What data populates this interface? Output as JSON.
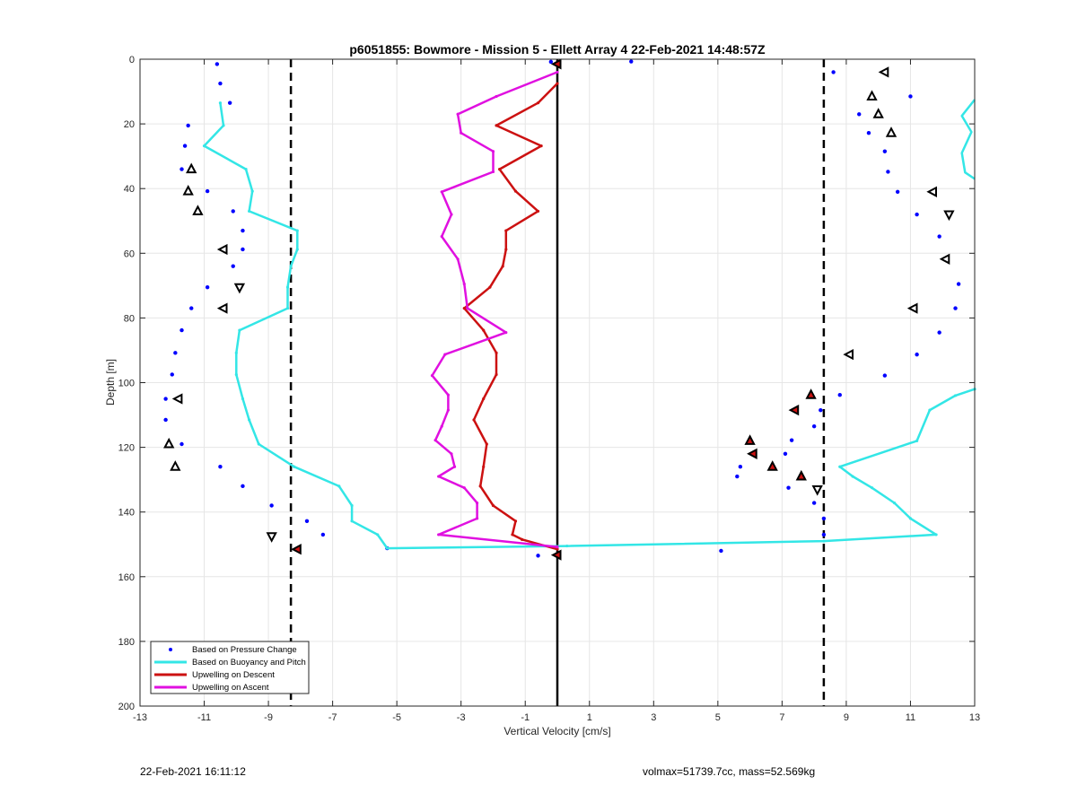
{
  "chart_data": {
    "type": "scatter",
    "title": "p6051855: Bowmore - Mission 5 - Ellett Array 4 22-Feb-2021 14:48:57Z",
    "xlabel": "Vertical Velocity [cm/s]",
    "ylabel": "Depth [m]",
    "xlim": [
      -13,
      13
    ],
    "ylim": [
      0,
      200
    ],
    "y_reversed": true,
    "grid": true,
    "legend_position": "bottom-left",
    "xticks": [
      "-13",
      "-11",
      "-9",
      "-7",
      "-5",
      "-3",
      "-1",
      "1",
      "3",
      "5",
      "7",
      "9",
      "11",
      "13"
    ],
    "yticks": [
      "0",
      "20",
      "40",
      "60",
      "80",
      "100",
      "120",
      "140",
      "160",
      "180",
      "200"
    ],
    "reference_lines": {
      "zero_line_x": 0,
      "dashed_lines_x": [
        -8.3,
        8.3
      ],
      "zero_color": "#000000",
      "dashed_color": "#000000"
    },
    "series": [
      {
        "name": "Based on Pressure Change",
        "style": "dots",
        "color": "#0000ff",
        "points": [
          [
            -10.6,
            1.5
          ],
          [
            -10.5,
            7.5
          ],
          [
            -10.2,
            13.5
          ],
          [
            -11.5,
            20.5
          ],
          [
            -11.6,
            26.8
          ],
          [
            -11.7,
            34
          ],
          [
            -10.9,
            40.8
          ],
          [
            -10.1,
            47
          ],
          [
            -9.8,
            53
          ],
          [
            -9.8,
            58.8
          ],
          [
            -10.1,
            64
          ],
          [
            -10.9,
            70.5
          ],
          [
            -11.4,
            77
          ],
          [
            -11.7,
            83.8
          ],
          [
            -11.9,
            90.8
          ],
          [
            -12.0,
            97.5
          ],
          [
            -12.2,
            105
          ],
          [
            -12.2,
            111.5
          ],
          [
            -11.7,
            119
          ],
          [
            -10.5,
            126
          ],
          [
            -9.8,
            132
          ],
          [
            -8.9,
            138
          ],
          [
            -7.8,
            142.8
          ],
          [
            -7.3,
            147
          ],
          [
            -5.3,
            151.2
          ],
          [
            -0.6,
            153.5
          ],
          [
            -0.2,
            0.8
          ],
          [
            2.3,
            0.7
          ],
          [
            5.1,
            152
          ],
          [
            8.6,
            4
          ],
          [
            11.0,
            11.5
          ],
          [
            9.4,
            17
          ],
          [
            9.7,
            22.8
          ],
          [
            10.2,
            28.5
          ],
          [
            10.3,
            34.8
          ],
          [
            10.6,
            41
          ],
          [
            11.2,
            48
          ],
          [
            11.9,
            54.8
          ],
          [
            12.1,
            61.8
          ],
          [
            12.5,
            69.5
          ],
          [
            12.4,
            77
          ],
          [
            11.9,
            84.5
          ],
          [
            11.2,
            91.3
          ],
          [
            10.2,
            97.8
          ],
          [
            8.8,
            103.8
          ],
          [
            8.2,
            108.5
          ],
          [
            8.0,
            113.5
          ],
          [
            7.3,
            117.8
          ],
          [
            7.1,
            122
          ],
          [
            5.7,
            126
          ],
          [
            5.6,
            129
          ],
          [
            7.2,
            132.5
          ],
          [
            8.0,
            137.2
          ],
          [
            8.3,
            142
          ],
          [
            8.3,
            147
          ]
        ]
      },
      {
        "name": "Based on Buoyancy and Pitch",
        "style": "line",
        "color": "#33e6e6",
        "points": [
          [
            -10.5,
            13.5
          ],
          [
            -10.4,
            20.5
          ],
          [
            -11.0,
            26.8
          ],
          [
            -9.7,
            34
          ],
          [
            -9.5,
            40.8
          ],
          [
            -9.6,
            47
          ],
          [
            -8.1,
            53
          ],
          [
            -8.1,
            58.8
          ],
          [
            -8.3,
            64
          ],
          [
            -8.4,
            70.5
          ],
          [
            -8.4,
            77
          ],
          [
            -9.9,
            83.8
          ],
          [
            -10.0,
            90.8
          ],
          [
            -10.0,
            97.5
          ],
          [
            -9.8,
            105
          ],
          [
            -9.6,
            111.5
          ],
          [
            -9.3,
            119
          ],
          [
            -8.2,
            126
          ],
          [
            -6.8,
            132
          ],
          [
            -6.4,
            138
          ],
          [
            -6.4,
            142.8
          ],
          [
            -5.6,
            147
          ],
          [
            -5.3,
            151.2
          ],
          [
            0.3,
            150.5
          ],
          [
            8.3,
            149
          ],
          [
            11.8,
            147
          ],
          [
            11.0,
            142
          ],
          [
            10.5,
            137.2
          ],
          [
            9.8,
            132.5
          ],
          [
            9.2,
            129
          ],
          [
            8.8,
            126
          ],
          [
            11.2,
            118
          ],
          [
            11.6,
            108.5
          ],
          [
            12.4,
            104
          ],
          [
            13.0,
            102
          ]
        ],
        "extra_segment": [
          [
            13.0,
            12.5
          ],
          [
            12.6,
            17.5
          ],
          [
            12.9,
            22.5
          ],
          [
            12.6,
            29
          ],
          [
            12.7,
            35
          ],
          [
            13.0,
            37
          ]
        ]
      },
      {
        "name": "Upwelling on Descent",
        "style": "line",
        "color": "#cc1111",
        "points": [
          [
            0.0,
            7.5
          ],
          [
            -0.6,
            13.5
          ],
          [
            -1.9,
            20.5
          ],
          [
            -0.5,
            26.8
          ],
          [
            -1.8,
            34
          ],
          [
            -1.3,
            40.8
          ],
          [
            -0.6,
            47
          ],
          [
            -1.6,
            53
          ],
          [
            -1.6,
            58.8
          ],
          [
            -1.7,
            64
          ],
          [
            -2.1,
            70.5
          ],
          [
            -2.9,
            77
          ],
          [
            -2.3,
            83.8
          ],
          [
            -1.9,
            90.8
          ],
          [
            -1.9,
            97.5
          ],
          [
            -2.3,
            105
          ],
          [
            -2.6,
            111.5
          ],
          [
            -2.2,
            119
          ],
          [
            -2.3,
            126
          ],
          [
            -2.4,
            132
          ],
          [
            -2.0,
            138
          ],
          [
            -1.3,
            142.8
          ],
          [
            -1.4,
            147
          ],
          [
            -1.1,
            148.5
          ],
          [
            0.0,
            151.5
          ]
        ]
      },
      {
        "name": "Upwelling on Ascent",
        "style": "line",
        "color": "#e010e0",
        "points": [
          [
            0.0,
            4
          ],
          [
            -1.9,
            11.5
          ],
          [
            -3.1,
            17
          ],
          [
            -3.0,
            22.8
          ],
          [
            -2.0,
            28.5
          ],
          [
            -2.0,
            34.8
          ],
          [
            -3.6,
            41
          ],
          [
            -3.3,
            48
          ],
          [
            -3.6,
            54.8
          ],
          [
            -3.1,
            61.8
          ],
          [
            -2.9,
            69.5
          ],
          [
            -2.8,
            77
          ],
          [
            -1.6,
            84.5
          ],
          [
            -3.5,
            91.3
          ],
          [
            -3.9,
            97.8
          ],
          [
            -3.4,
            103.8
          ],
          [
            -3.4,
            108.5
          ],
          [
            -3.6,
            113.5
          ],
          [
            -3.8,
            117.8
          ],
          [
            -3.3,
            122
          ],
          [
            -3.2,
            126
          ],
          [
            -3.7,
            129
          ],
          [
            -2.9,
            132.5
          ],
          [
            -2.5,
            137.2
          ],
          [
            -2.5,
            142
          ],
          [
            -3.7,
            147
          ],
          [
            0.0,
            150.8
          ]
        ]
      }
    ],
    "markers": [
      {
        "shape": "tri-left",
        "fill": "none",
        "points": [
          [
            10.2,
            4
          ],
          [
            11.7,
            41
          ],
          [
            11.1,
            77
          ]
        ]
      },
      {
        "shape": "tri-up",
        "fill": "none",
        "points": [
          [
            9.8,
            11.5
          ],
          [
            10.0,
            17
          ],
          [
            10.4,
            22.8
          ],
          [
            -11.4,
            34
          ],
          [
            -11.5,
            40.8
          ],
          [
            -11.2,
            47
          ],
          [
            -12.1,
            119
          ]
        ]
      },
      {
        "shape": "tri-down",
        "fill": "none",
        "points": [
          [
            12.2,
            48
          ],
          [
            8.1,
            133
          ],
          [
            -9.9,
            70.5
          ],
          [
            -8.9,
            147.5
          ]
        ]
      },
      {
        "shape": "tri-left",
        "fill": "none",
        "points": [
          [
            -10.4,
            58.8
          ],
          [
            -11.8,
            105
          ],
          [
            -10.4,
            77
          ]
        ]
      },
      {
        "shape": "tri-up",
        "fill": "none",
        "points": [
          [
            -11.9,
            126
          ]
        ]
      },
      {
        "shape": "tri-left",
        "fill": "none",
        "points": [
          [
            9.1,
            91.3
          ],
          [
            12.1,
            61.8
          ]
        ]
      },
      {
        "shape": "tri-up",
        "fill": "#cc1111",
        "points": [
          [
            7.9,
            103.8
          ],
          [
            6.0,
            118
          ],
          [
            6.7,
            126
          ],
          [
            7.6,
            129
          ]
        ]
      },
      {
        "shape": "tri-left",
        "fill": "#cc1111",
        "points": [
          [
            7.4,
            108.5
          ],
          [
            6.1,
            122
          ],
          [
            -8.1,
            151.5
          ],
          [
            0.0,
            153.3
          ],
          [
            0.0,
            1.5
          ]
        ]
      }
    ]
  },
  "footer": {
    "timestamp": "22-Feb-2021 16:11:12",
    "stats": "volmax=51739.7cc, mass=52.569kg"
  }
}
